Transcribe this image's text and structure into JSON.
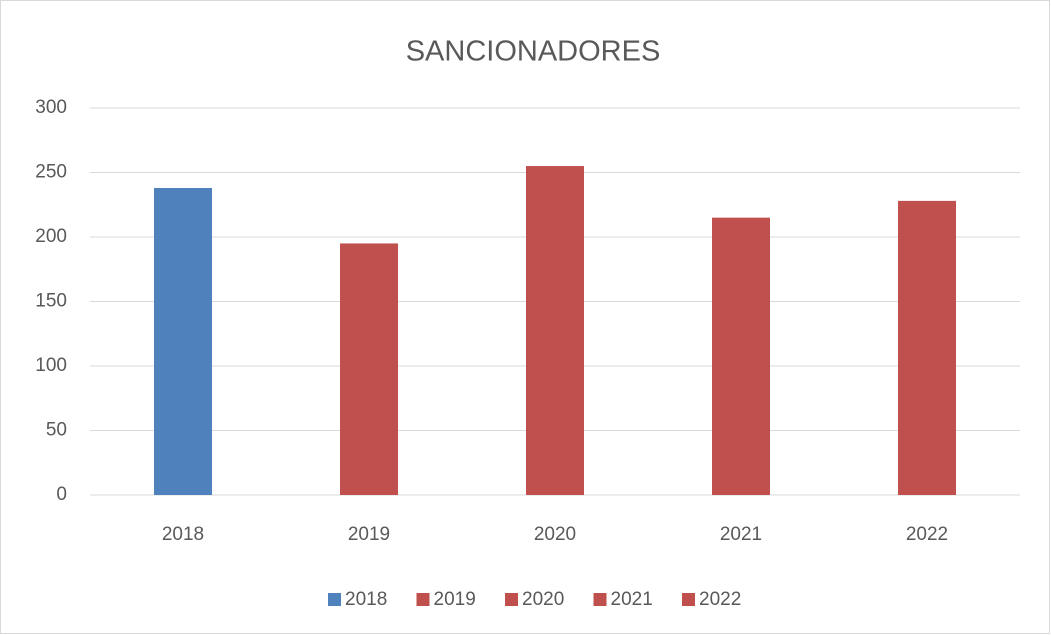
{
  "chart_data": {
    "type": "bar",
    "title": "SANCIONADORES",
    "categories": [
      "2018",
      "2019",
      "2020",
      "2021",
      "2022"
    ],
    "values": [
      238,
      195,
      255,
      215,
      228
    ],
    "colors": [
      "#4f81bd",
      "#c0504d",
      "#c0504d",
      "#c0504d",
      "#c0504d"
    ],
    "ylim": [
      0,
      300
    ],
    "yticks": [
      0,
      50,
      100,
      150,
      200,
      250,
      300
    ],
    "grid": true,
    "legend": "bottom"
  }
}
